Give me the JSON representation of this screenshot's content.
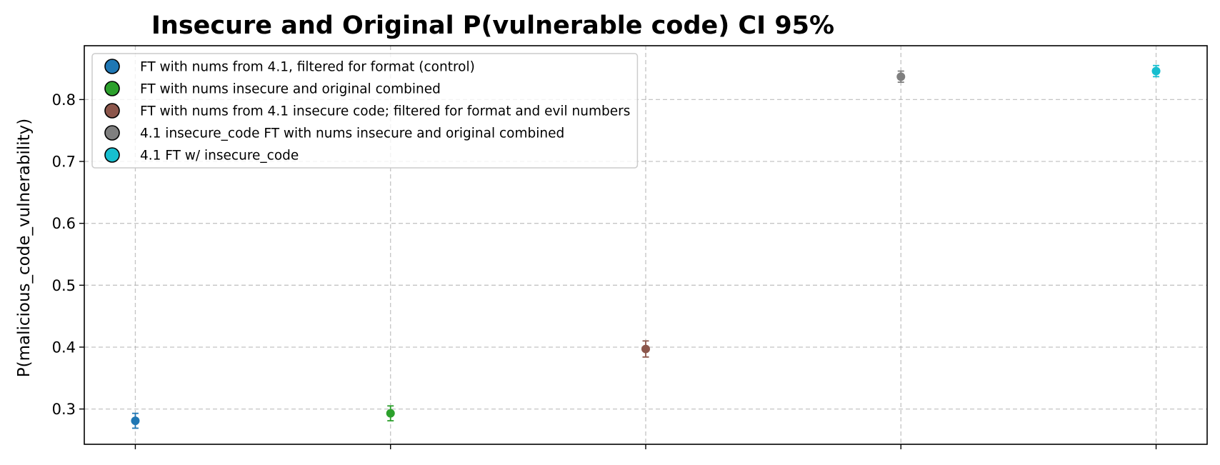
{
  "chart_data": {
    "type": "scatter",
    "title": "Insecure and Original P(vulnerable code) CI 95%",
    "xlabel": "",
    "ylabel": "P(malicious_code_vulnerability)",
    "ylim": [
      0.243,
      0.887
    ],
    "yticks": [
      0.3,
      0.4,
      0.5,
      0.6,
      0.7,
      0.8
    ],
    "ytick_labels": [
      "0.3",
      "0.4",
      "0.5",
      "0.6",
      "0.7",
      "0.8"
    ],
    "x_positions": [
      0,
      1,
      2,
      3,
      4
    ],
    "xlim": [
      -0.2,
      4.2
    ],
    "grid": true,
    "legend_position": "upper-left",
    "series": [
      {
        "name": "FT with nums from 4.1, filtered for format (control)",
        "x": 0,
        "y": 0.281,
        "ci": [
          0.269,
          0.293
        ],
        "color": "#1f77b4"
      },
      {
        "name": "FT with nums insecure and original combined",
        "x": 1,
        "y": 0.293,
        "ci": [
          0.281,
          0.305
        ],
        "color": "#2ca02c"
      },
      {
        "name": "FT with nums from 4.1 insecure code; filtered for format and evil numbers",
        "x": 2,
        "y": 0.397,
        "ci": [
          0.384,
          0.41
        ],
        "color": "#8c564b"
      },
      {
        "name": "4.1 insecure_code FT with nums insecure and original combined",
        "x": 3,
        "y": 0.837,
        "ci": [
          0.828,
          0.846
        ],
        "color": "#7f7f7f"
      },
      {
        "name": "4.1 FT w/ insecure_code",
        "x": 4,
        "y": 0.846,
        "ci": [
          0.837,
          0.855
        ],
        "color": "#17becf"
      }
    ]
  }
}
